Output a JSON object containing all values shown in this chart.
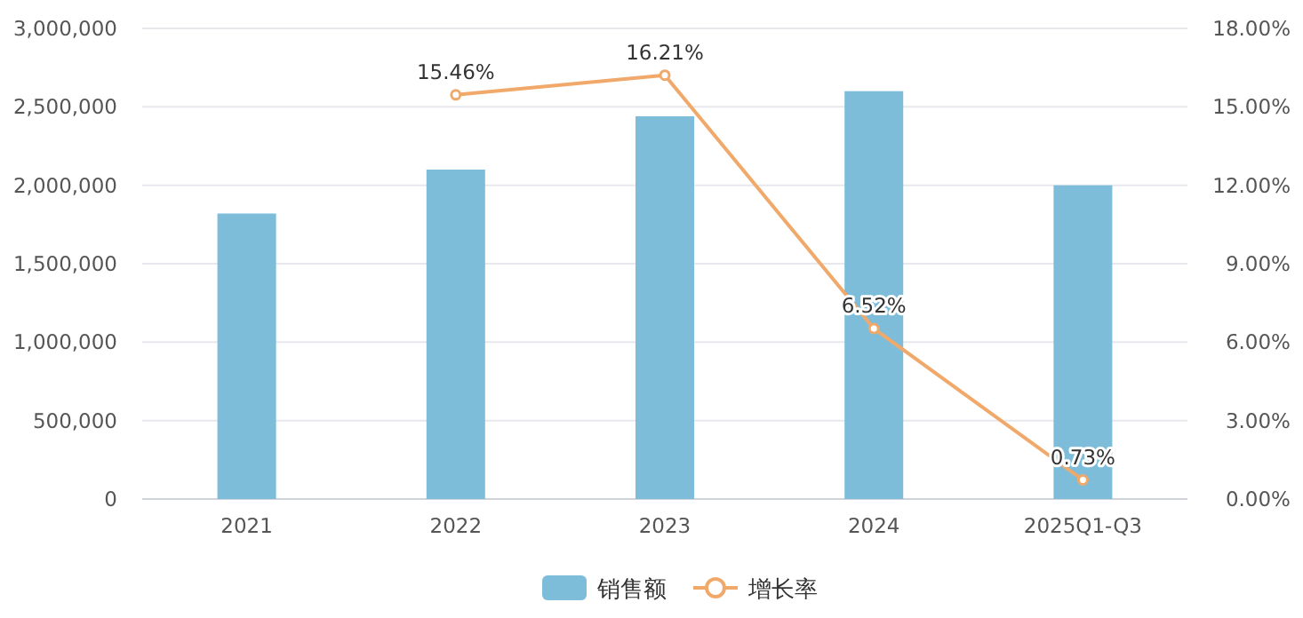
{
  "chart_data": {
    "type": "bar",
    "categories": [
      "2021",
      "2022",
      "2023",
      "2024",
      "2025Q1-Q3"
    ],
    "series": [
      {
        "name": "销售额",
        "color": "#7dbdda",
        "values": [
          1820000,
          2100000,
          2440000,
          2600000,
          2000000
        ]
      },
      {
        "name": "增长率",
        "type": "line",
        "axis": "y2",
        "color": "#f0a96a",
        "marker": "circle",
        "values": [
          null,
          15.46,
          16.21,
          6.52,
          0.73
        ],
        "value_labels": [
          null,
          "15.46%",
          "16.21%",
          "6.52%",
          "0.73%"
        ]
      }
    ],
    "ylim": [
      0,
      3000000
    ],
    "yticks": [
      {
        "value": 0,
        "label": "0"
      },
      {
        "value": 500000,
        "label": "500,000"
      },
      {
        "value": 1000000,
        "label": "1,000,000"
      },
      {
        "value": 1500000,
        "label": "1,500,000"
      },
      {
        "value": 2000000,
        "label": "2,000,000"
      },
      {
        "value": 2500000,
        "label": "2,500,000"
      },
      {
        "value": 3000000,
        "label": "3,000,000"
      }
    ],
    "y2lim": [
      0,
      18
    ],
    "y2ticks": [
      {
        "value": 0,
        "label": "0.00%"
      },
      {
        "value": 3,
        "label": "3.00%"
      },
      {
        "value": 6,
        "label": "6.00%"
      },
      {
        "value": 9,
        "label": "9.00%"
      },
      {
        "value": 12,
        "label": "12.00%"
      },
      {
        "value": 15,
        "label": "15.00%"
      },
      {
        "value": 18,
        "label": "18.00%"
      }
    ],
    "grid": "y",
    "legend": "bottom"
  }
}
